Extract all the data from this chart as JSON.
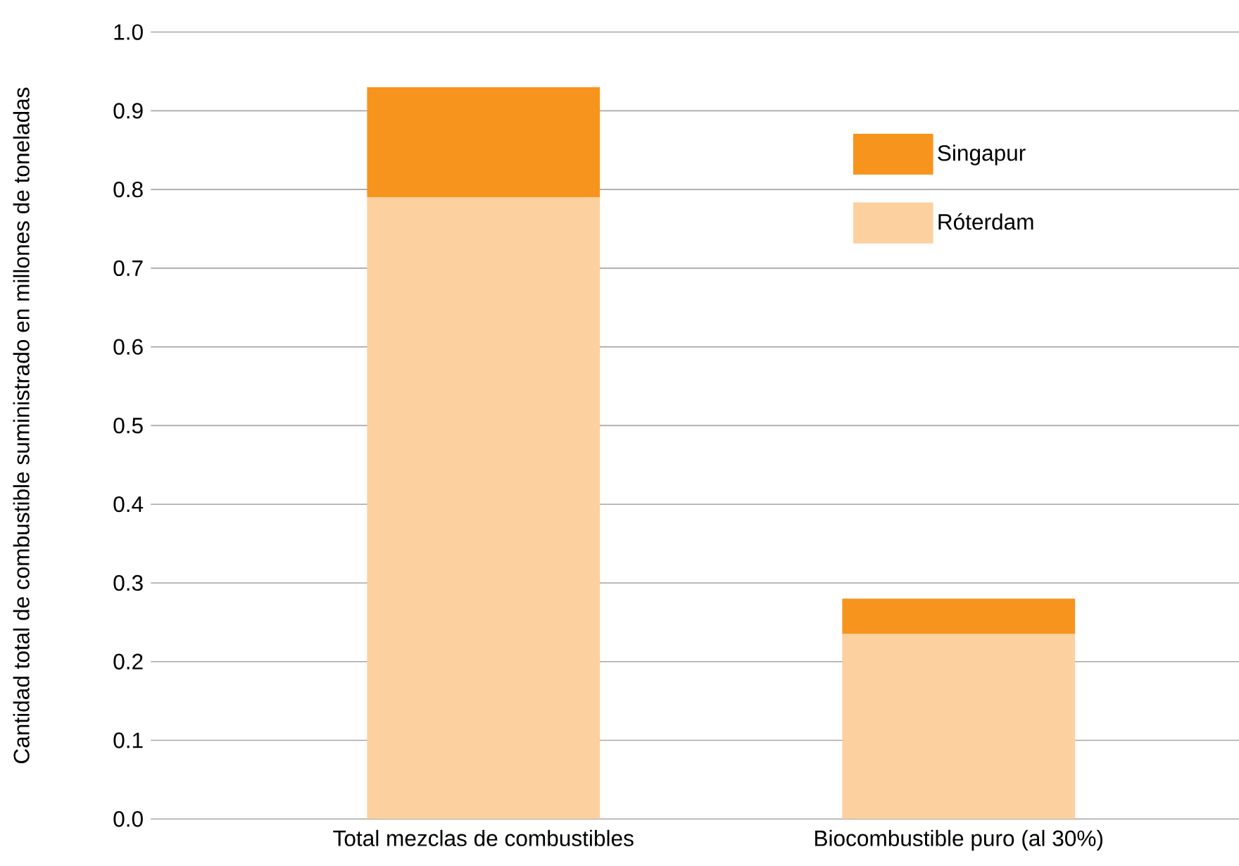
{
  "chart_data": {
    "type": "bar",
    "stacked": true,
    "ylabel": "Cantidad total de combustible suministrado en millones de toneladas",
    "categories": [
      "Total mezclas de combustibles",
      "Biocombustible puro (al 30%)"
    ],
    "series": [
      {
        "name": "Róterdam",
        "color": "#fdd09f",
        "values": [
          0.79,
          0.235
        ]
      },
      {
        "name": "Singapur",
        "color": "#f7941d",
        "values": [
          0.14,
          0.045
        ]
      }
    ],
    "ylim": [
      0,
      1.0
    ],
    "yticks": [
      {
        "value": 0,
        "label": "0.0"
      },
      {
        "value": 0.1,
        "label": "0.1"
      },
      {
        "value": 0.2,
        "label": "0.2"
      },
      {
        "value": 0.3,
        "label": "0.3"
      },
      {
        "value": 0.4,
        "label": "0.4"
      },
      {
        "value": 0.5,
        "label": "0.5"
      },
      {
        "value": 0.6,
        "label": "0.6"
      },
      {
        "value": 0.7,
        "label": "0.7"
      },
      {
        "value": 0.8,
        "label": "0.8"
      },
      {
        "value": 0.9,
        "label": "0.9"
      },
      {
        "value": 1.0,
        "label": "1.0"
      }
    ],
    "grid": "y",
    "legend": "top right"
  }
}
